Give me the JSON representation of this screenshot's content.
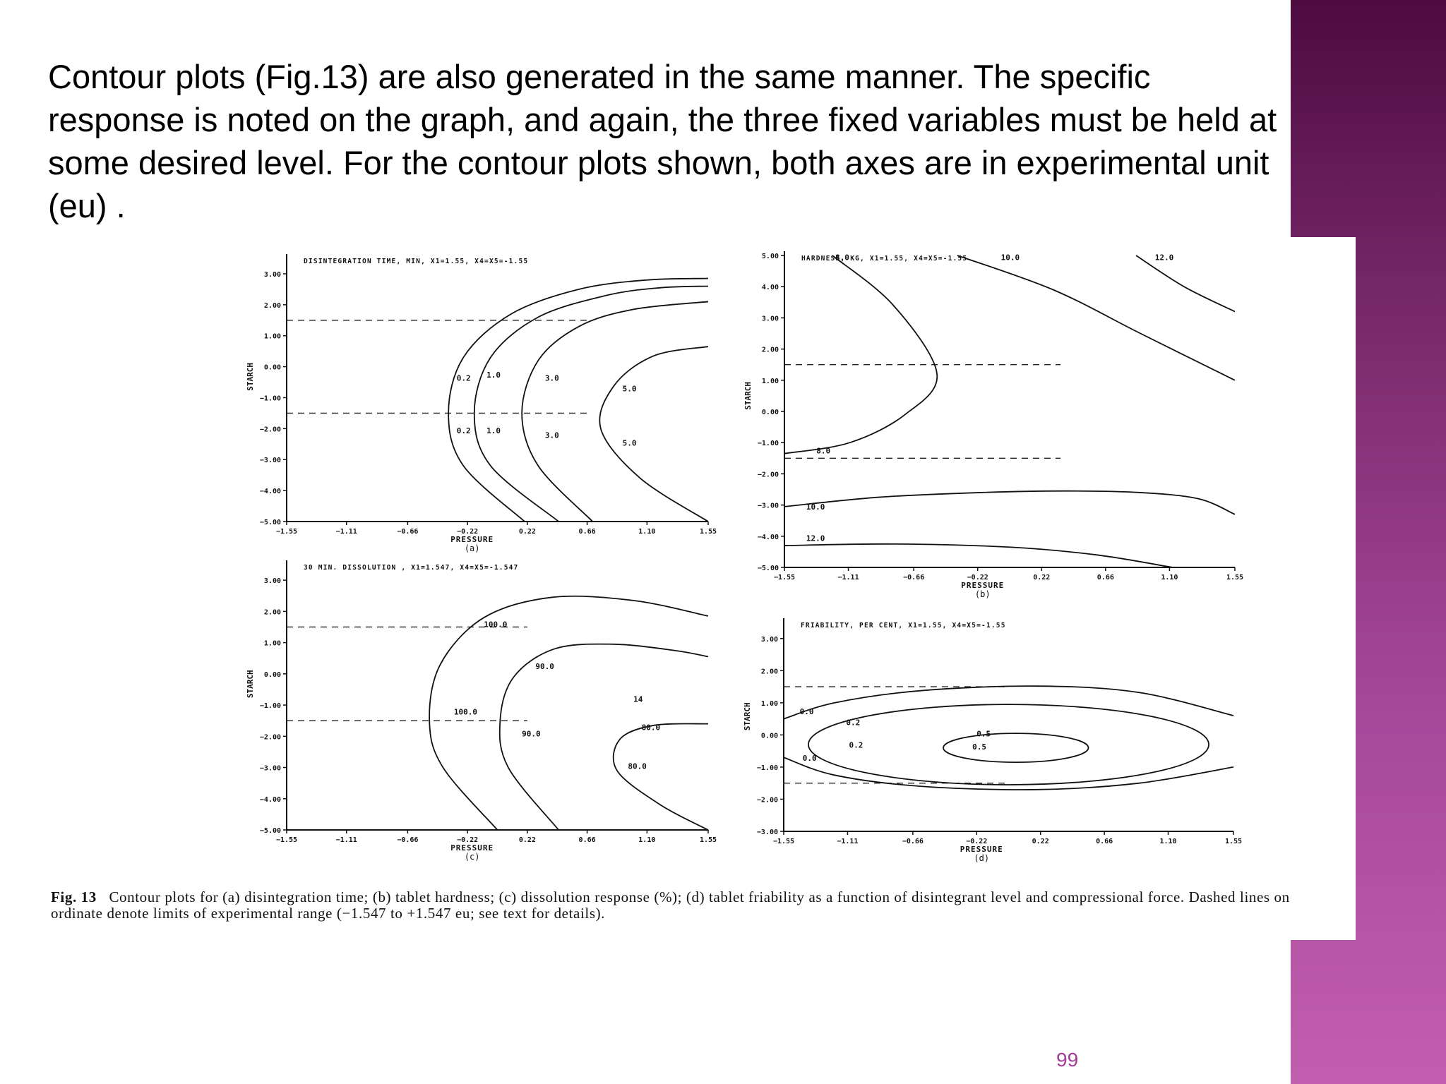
{
  "slide": {
    "intro_text": "Contour plots (Fig.13) are also generated in the same manner.  The specific response is noted on the graph, and again, the three fixed variables must be held at some desired level. For the contour plots shown, both axes are in experimental unit (eu) .",
    "caption_fig": "Fig. 13",
    "caption_text": "Contour plots for (a) disintegration time; (b) tablet hardness; (c) dissolution response (%); (d) tablet friability as a function of disintegrant level and compressional force. Dashed lines on ordinate denote limits of experimental range (−1.547 to +1.547 eu; see text for details).",
    "page_number": "99",
    "band_colors": [
      "#4d0b40",
      "#c25eb0"
    ],
    "accent_page_number": "#a43a98"
  },
  "chart_data": [
    {
      "type": "contour",
      "panel": "(a)",
      "title": "DISINTEGRATION TIME, MIN, X1=1.55, X4=X5=-1.55",
      "xlabel": "PRESSURE",
      "ylabel": "STARCH",
      "x_ticks": [
        "-1.55",
        "-1.11",
        "-0.66",
        "-0.22",
        "0.22",
        "0.66",
        "1.10",
        "1.55"
      ],
      "y_ticks": [
        "3.00",
        "2.00",
        "1.00",
        "0.00",
        "-1.00",
        "-2.00",
        "-3.00",
        "-4.00",
        "-5.00"
      ],
      "xlim": [
        -1.55,
        1.55
      ],
      "ylim": [
        -5.0,
        3.5
      ],
      "dashed_y": [
        1.5,
        -1.5
      ],
      "dashed_x_to": 0.66,
      "contours": [
        {
          "label": "0.2",
          "label_positions": [
            [
              -0.3,
              -0.45
            ],
            [
              -0.3,
              -2.15
            ]
          ],
          "points": [
            [
              0.2,
              -5.0
            ],
            [
              -0.25,
              -3.2
            ],
            [
              -0.36,
              -1.5
            ],
            [
              -0.25,
              0.3
            ],
            [
              0.1,
              1.7
            ],
            [
              0.6,
              2.5
            ],
            [
              1.1,
              2.8
            ],
            [
              1.55,
              2.85
            ]
          ]
        },
        {
          "label": "1.0",
          "label_positions": [
            [
              -0.08,
              -0.35
            ],
            [
              -0.08,
              -2.15
            ]
          ],
          "points": [
            [
              0.45,
              -5.0
            ],
            [
              -0.05,
              -3.2
            ],
            [
              -0.17,
              -1.5
            ],
            [
              -0.05,
              0.3
            ],
            [
              0.3,
              1.6
            ],
            [
              0.8,
              2.3
            ],
            [
              1.2,
              2.55
            ],
            [
              1.55,
              2.6
            ]
          ]
        },
        {
          "label": "3.0",
          "label_positions": [
            [
              0.35,
              -0.45
            ],
            [
              0.35,
              -2.3
            ]
          ],
          "points": [
            [
              0.7,
              -5.0
            ],
            [
              0.3,
              -3.2
            ],
            [
              0.18,
              -1.5
            ],
            [
              0.3,
              0.2
            ],
            [
              0.6,
              1.3
            ],
            [
              1.0,
              1.85
            ],
            [
              1.55,
              2.1
            ]
          ]
        },
        {
          "label": "5.0",
          "label_positions": [
            [
              0.92,
              -0.8
            ],
            [
              0.92,
              -2.55
            ]
          ],
          "points": [
            [
              1.55,
              -5.0
            ],
            [
              1.05,
              -3.6
            ],
            [
              0.76,
              -2.0
            ],
            [
              0.86,
              -0.6
            ],
            [
              1.15,
              0.35
            ],
            [
              1.55,
              0.65
            ]
          ]
        }
      ]
    },
    {
      "type": "contour",
      "panel": "(b)",
      "title": "HARDNESS, KG, X1=1.55, X4=X5=-1.55",
      "xlabel": "PRESSURE",
      "ylabel": "STARCH",
      "x_ticks": [
        "-1.55",
        "-1.11",
        "-0.66",
        "-0.22",
        "0.22",
        "0.66",
        "1.10",
        "1.55"
      ],
      "y_ticks": [
        "5.00",
        "4.00",
        "3.00",
        "2.00",
        "1.00",
        "0.00",
        "-1.00",
        "-2.00",
        "-3.00",
        "-4.00",
        "-5.00"
      ],
      "xlim": [
        -1.55,
        1.55
      ],
      "ylim": [
        -5.0,
        5.0
      ],
      "dashed_y": [
        1.5,
        -1.5
      ],
      "dashed_x_to": 0.35,
      "contours": [
        {
          "label": "8.0",
          "label_positions": [
            [
              -1.2,
              4.85
            ],
            [
              -1.33,
              -1.35
            ]
          ],
          "points": [
            [
              -1.22,
              5.0
            ],
            [
              -0.8,
              3.4
            ],
            [
              -0.5,
              1.2
            ],
            [
              -0.72,
              -0.1
            ],
            [
              -1.1,
              -1.0
            ],
            [
              -1.55,
              -1.35
            ]
          ]
        },
        {
          "label": "10.0",
          "label_positions": [
            [
              -0.06,
              4.85
            ],
            [
              -1.4,
              -3.15
            ]
          ],
          "points": [
            [
              -0.36,
              5.0
            ],
            [
              0.3,
              3.9
            ],
            [
              0.9,
              2.5
            ],
            [
              1.55,
              1.0
            ]
          ]
        },
        {
          "label": "10.0",
          "show_label": false,
          "points": [
            [
              -1.55,
              -3.05
            ],
            [
              -0.9,
              -2.75
            ],
            [
              -0.2,
              -2.6
            ],
            [
              0.4,
              -2.55
            ],
            [
              0.9,
              -2.6
            ],
            [
              1.3,
              -2.8
            ],
            [
              1.55,
              -3.3
            ]
          ]
        },
        {
          "label": "12.0",
          "label_positions": [
            [
              1.0,
              4.85
            ],
            [
              -1.4,
              -4.15
            ]
          ],
          "points": [
            [
              0.87,
              5.0
            ],
            [
              1.2,
              4.0
            ],
            [
              1.55,
              3.2
            ]
          ]
        },
        {
          "label": "12.0",
          "show_label": false,
          "points": [
            [
              -1.55,
              -4.3
            ],
            [
              -0.8,
              -4.25
            ],
            [
              0.0,
              -4.35
            ],
            [
              0.6,
              -4.6
            ],
            [
              1.12,
              -5.0
            ]
          ]
        }
      ]
    },
    {
      "type": "contour",
      "panel": "(c)",
      "title": "30 MIN. DISSOLUTION , X1=1.547, X4=X5=-1.547",
      "xlabel": "PRESSURE",
      "ylabel": "STARCH",
      "x_ticks": [
        "-1.55",
        "-1.11",
        "-0.66",
        "-0.22",
        "0.22",
        "0.66",
        "1.10",
        "1.55"
      ],
      "y_ticks": [
        "3.00",
        "2.00",
        "1.00",
        "0.00",
        "-1.00",
        "-2.00",
        "-3.00",
        "-4.00",
        "-5.00"
      ],
      "xlim": [
        -1.55,
        1.55
      ],
      "ylim": [
        -5.0,
        3.5
      ],
      "dashed_y": [
        1.5,
        -1.5
      ],
      "dashed_x_to": 0.22,
      "contours": [
        {
          "label": "100.0",
          "label_positions": [
            [
              -0.1,
              1.5
            ],
            [
              -0.32,
              -1.3
            ]
          ],
          "points": [
            [
              0.0,
              -5.0
            ],
            [
              -0.4,
              -3.0
            ],
            [
              -0.5,
              -1.5
            ],
            [
              -0.42,
              0.3
            ],
            [
              -0.1,
              1.8
            ],
            [
              0.4,
              2.45
            ],
            [
              1.0,
              2.35
            ],
            [
              1.55,
              1.85
            ]
          ]
        },
        {
          "label": "90.0",
          "label_positions": [
            [
              0.28,
              0.15
            ],
            [
              0.18,
              -2.0
            ]
          ],
          "points": [
            [
              0.45,
              -5.0
            ],
            [
              0.08,
              -3.0
            ],
            [
              0.02,
              -1.5
            ],
            [
              0.12,
              -0.1
            ],
            [
              0.42,
              0.8
            ],
            [
              0.85,
              0.95
            ],
            [
              1.3,
              0.75
            ],
            [
              1.55,
              0.55
            ]
          ]
        },
        {
          "label": "80.0",
          "label_positions": [
            [
              1.06,
              -1.8
            ],
            [
              0.96,
              -3.05
            ]
          ],
          "points": [
            [
              1.55,
              -5.0
            ],
            [
              1.2,
              -4.2
            ],
            [
              0.88,
              -3.1
            ],
            [
              0.9,
              -2.1
            ],
            [
              1.15,
              -1.65
            ],
            [
              1.55,
              -1.6
            ]
          ]
        }
      ],
      "annotations": [
        {
          "text": "14",
          "x": 1.0,
          "y": -0.9
        }
      ]
    },
    {
      "type": "contour",
      "panel": "(d)",
      "title": "FRIABILITY, PER CENT,   X1=1.55, X4=X5=-1.55",
      "xlabel": "PRESSURE",
      "ylabel": "STARCH",
      "x_ticks": [
        "-1.55",
        "-1.11",
        "-0.66",
        "-0.22",
        "0.22",
        "0.66",
        "1.10",
        "1.55"
      ],
      "y_ticks": [
        "3.00",
        "2.00",
        "1.00",
        "0.00",
        "-1.00",
        "-2.00",
        "-3.00"
      ],
      "xlim": [
        -1.55,
        1.55
      ],
      "ylim": [
        -3.0,
        3.5
      ],
      "dashed_y": [
        1.5,
        -1.5
      ],
      "dashed_x_to": 0.0,
      "contours": [
        {
          "label": "0.0",
          "label_positions": [
            [
              -1.44,
              0.65
            ],
            [
              -1.42,
              -0.8
            ]
          ],
          "points": [
            [
              -1.55,
              0.5
            ],
            [
              -1.2,
              1.0
            ],
            [
              -0.6,
              1.38
            ],
            [
              0.2,
              1.52
            ],
            [
              0.9,
              1.32
            ],
            [
              1.55,
              0.6
            ]
          ]
        },
        {
          "label": "0.0",
          "show_label": false,
          "points": [
            [
              -1.55,
              -0.7
            ],
            [
              -1.2,
              -1.25
            ],
            [
              -0.6,
              -1.6
            ],
            [
              0.2,
              -1.7
            ],
            [
              0.9,
              -1.5
            ],
            [
              1.55,
              -1.0
            ]
          ]
        },
        {
          "label": "0.2",
          "label_positions": [
            [
              -1.12,
              0.3
            ],
            [
              -1.1,
              -0.4
            ]
          ],
          "points": "ellipse",
          "cx": 0.0,
          "cy": -0.3,
          "rx": 1.38,
          "ry": 1.25
        },
        {
          "label": "0.5",
          "label_positions": [
            [
              -0.22,
              -0.05
            ],
            [
              -0.25,
              -0.45
            ]
          ],
          "points": "ellipse",
          "cx": 0.05,
          "cy": -0.4,
          "rx": 0.5,
          "ry": 0.45
        }
      ]
    }
  ]
}
